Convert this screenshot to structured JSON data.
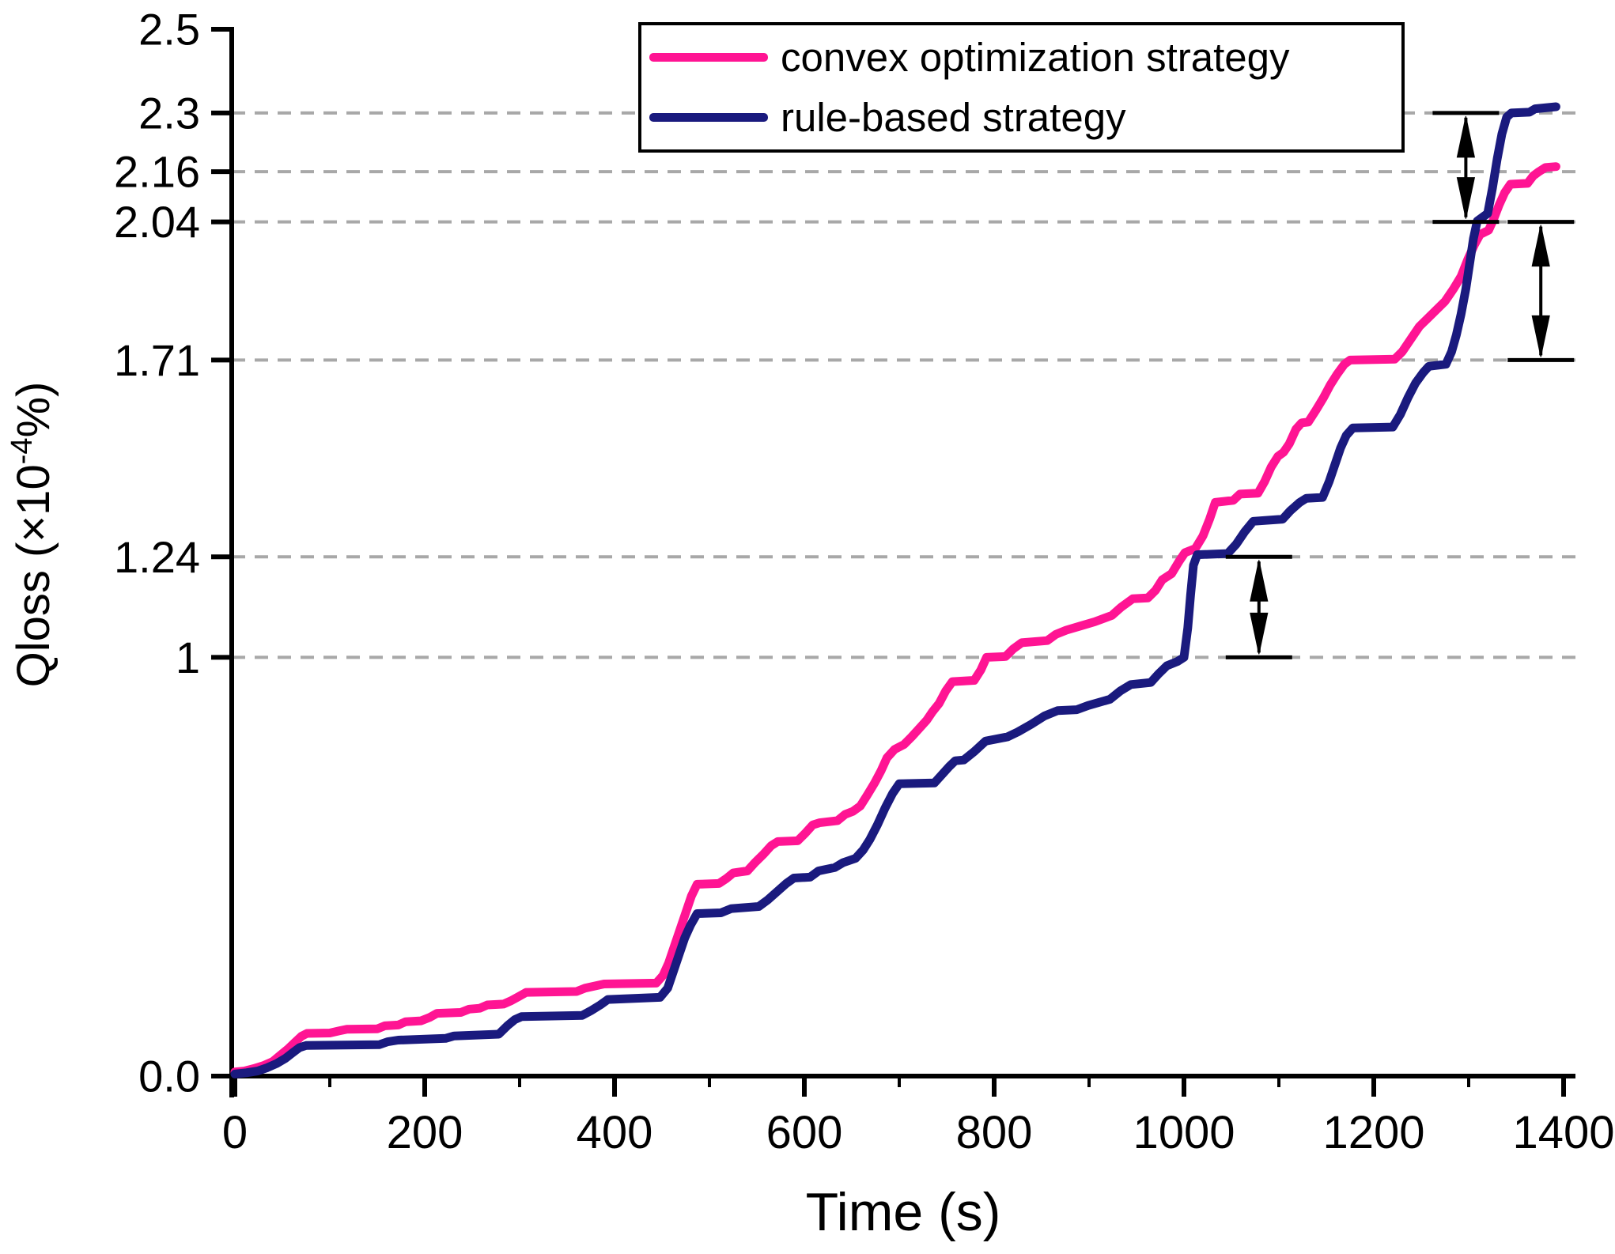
{
  "chart_data": {
    "type": "line",
    "title": "",
    "xlabel": "Time (s)",
    "ylabel": "Qloss (×10⁻⁴%)",
    "ylabel_parts": {
      "pre": "Qloss (×10",
      "sup": "-4",
      "post": "%)"
    },
    "xlim": [
      0,
      1400
    ],
    "ylim": [
      0,
      2.5
    ],
    "grid": "dashed horizontal lines at special y ticks",
    "grid_color": "#a8a8a8",
    "axis_color": "#000000",
    "legend_position": "top-center",
    "x_ticks": [
      {
        "value": 0,
        "label": "0"
      },
      {
        "value": 200,
        "label": "200"
      },
      {
        "value": 400,
        "label": "400"
      },
      {
        "value": 600,
        "label": "600"
      },
      {
        "value": 800,
        "label": "800"
      },
      {
        "value": 1000,
        "label": "1000"
      },
      {
        "value": 1200,
        "label": "1200"
      },
      {
        "value": 1400,
        "label": "1400"
      }
    ],
    "x_minor_ticks": [
      100,
      300,
      500,
      700,
      900,
      1100,
      1300
    ],
    "y_ticks": [
      {
        "value": 0,
        "label": "0.0"
      },
      {
        "value": 1,
        "label": "1"
      },
      {
        "value": 1.24,
        "label": "1.24"
      },
      {
        "value": 1.71,
        "label": "1.71"
      },
      {
        "value": 2.04,
        "label": "2.04"
      },
      {
        "value": 2.16,
        "label": "2.16"
      },
      {
        "value": 2.3,
        "label": "2.3"
      },
      {
        "value": 2.5,
        "label": "2.5"
      }
    ],
    "gridline_values": [
      1,
      1.24,
      1.71,
      2.04,
      2.16,
      2.3
    ],
    "series": [
      {
        "name": "convex optimization strategy",
        "color": "#ff1493",
        "points": [
          [
            0,
            0.01
          ],
          [
            10,
            0.012
          ],
          [
            20,
            0.018
          ],
          [
            30,
            0.025
          ],
          [
            40,
            0.035
          ],
          [
            48,
            0.05
          ],
          [
            56,
            0.065
          ],
          [
            63,
            0.08
          ],
          [
            70,
            0.095
          ],
          [
            76,
            0.102
          ],
          [
            100,
            0.103
          ],
          [
            110,
            0.108
          ],
          [
            118,
            0.112
          ],
          [
            150,
            0.113
          ],
          [
            158,
            0.12
          ],
          [
            172,
            0.122
          ],
          [
            180,
            0.13
          ],
          [
            196,
            0.132
          ],
          [
            205,
            0.14
          ],
          [
            213,
            0.15
          ],
          [
            238,
            0.152
          ],
          [
            247,
            0.16
          ],
          [
            258,
            0.162
          ],
          [
            266,
            0.17
          ],
          [
            283,
            0.172
          ],
          [
            291,
            0.18
          ],
          [
            299,
            0.19
          ],
          [
            307,
            0.2
          ],
          [
            360,
            0.202
          ],
          [
            369,
            0.21
          ],
          [
            379,
            0.215
          ],
          [
            389,
            0.22
          ],
          [
            444,
            0.222
          ],
          [
            451,
            0.24
          ],
          [
            457,
            0.27
          ],
          [
            463,
            0.31
          ],
          [
            469,
            0.35
          ],
          [
            475,
            0.39
          ],
          [
            481,
            0.43
          ],
          [
            487,
            0.458
          ],
          [
            510,
            0.46
          ],
          [
            518,
            0.472
          ],
          [
            525,
            0.485
          ],
          [
            540,
            0.49
          ],
          [
            548,
            0.51
          ],
          [
            557,
            0.53
          ],
          [
            565,
            0.55
          ],
          [
            572,
            0.56
          ],
          [
            593,
            0.562
          ],
          [
            601,
            0.58
          ],
          [
            609,
            0.6
          ],
          [
            616,
            0.605
          ],
          [
            635,
            0.61
          ],
          [
            643,
            0.625
          ],
          [
            651,
            0.632
          ],
          [
            659,
            0.645
          ],
          [
            666,
            0.67
          ],
          [
            674,
            0.7
          ],
          [
            681,
            0.73
          ],
          [
            687,
            0.76
          ],
          [
            695,
            0.78
          ],
          [
            705,
            0.792
          ],
          [
            713,
            0.81
          ],
          [
            721,
            0.83
          ],
          [
            729,
            0.85
          ],
          [
            735,
            0.87
          ],
          [
            742,
            0.89
          ],
          [
            749,
            0.92
          ],
          [
            756,
            0.942
          ],
          [
            779,
            0.945
          ],
          [
            786,
            0.97
          ],
          [
            792,
            1.0
          ],
          [
            812,
            1.002
          ],
          [
            820,
            1.02
          ],
          [
            829,
            1.035
          ],
          [
            856,
            1.04
          ],
          [
            865,
            1.055
          ],
          [
            876,
            1.065
          ],
          [
            891,
            1.075
          ],
          [
            906,
            1.085
          ],
          [
            924,
            1.1
          ],
          [
            934,
            1.12
          ],
          [
            946,
            1.14
          ],
          [
            962,
            1.142
          ],
          [
            970,
            1.16
          ],
          [
            977,
            1.185
          ],
          [
            987,
            1.2
          ],
          [
            995,
            1.23
          ],
          [
            1001,
            1.25
          ],
          [
            1012,
            1.26
          ],
          [
            1020,
            1.29
          ],
          [
            1027,
            1.33
          ],
          [
            1033,
            1.37
          ],
          [
            1052,
            1.375
          ],
          [
            1059,
            1.39
          ],
          [
            1078,
            1.392
          ],
          [
            1085,
            1.42
          ],
          [
            1092,
            1.455
          ],
          [
            1099,
            1.48
          ],
          [
            1105,
            1.49
          ],
          [
            1111,
            1.51
          ],
          [
            1118,
            1.545
          ],
          [
            1124,
            1.56
          ],
          [
            1131,
            1.562
          ],
          [
            1139,
            1.59
          ],
          [
            1147,
            1.62
          ],
          [
            1154,
            1.65
          ],
          [
            1161,
            1.675
          ],
          [
            1169,
            1.7
          ],
          [
            1175,
            1.71
          ],
          [
            1222,
            1.712
          ],
          [
            1230,
            1.73
          ],
          [
            1239,
            1.76
          ],
          [
            1248,
            1.79
          ],
          [
            1257,
            1.81
          ],
          [
            1266,
            1.83
          ],
          [
            1275,
            1.85
          ],
          [
            1284,
            1.88
          ],
          [
            1292,
            1.91
          ],
          [
            1299,
            1.95
          ],
          [
            1306,
            1.985
          ],
          [
            1312,
            2.01
          ],
          [
            1321,
            2.02
          ],
          [
            1326,
            2.045
          ],
          [
            1332,
            2.08
          ],
          [
            1338,
            2.11
          ],
          [
            1344,
            2.13
          ],
          [
            1362,
            2.132
          ],
          [
            1368,
            2.15
          ],
          [
            1374,
            2.16
          ],
          [
            1381,
            2.17
          ],
          [
            1392,
            2.172
          ]
        ]
      },
      {
        "name": "rule-based strategy",
        "color": "#1a1a7e",
        "points": [
          [
            0,
            0.005
          ],
          [
            12,
            0.008
          ],
          [
            24,
            0.012
          ],
          [
            34,
            0.02
          ],
          [
            44,
            0.03
          ],
          [
            53,
            0.042
          ],
          [
            61,
            0.056
          ],
          [
            68,
            0.068
          ],
          [
            75,
            0.073
          ],
          [
            152,
            0.075
          ],
          [
            161,
            0.082
          ],
          [
            172,
            0.086
          ],
          [
            222,
            0.09
          ],
          [
            231,
            0.096
          ],
          [
            278,
            0.1
          ],
          [
            287,
            0.12
          ],
          [
            295,
            0.135
          ],
          [
            302,
            0.142
          ],
          [
            366,
            0.145
          ],
          [
            375,
            0.156
          ],
          [
            385,
            0.17
          ],
          [
            393,
            0.183
          ],
          [
            448,
            0.188
          ],
          [
            456,
            0.21
          ],
          [
            462,
            0.25
          ],
          [
            468,
            0.29
          ],
          [
            474,
            0.33
          ],
          [
            480,
            0.36
          ],
          [
            487,
            0.388
          ],
          [
            512,
            0.39
          ],
          [
            523,
            0.4
          ],
          [
            552,
            0.405
          ],
          [
            561,
            0.42
          ],
          [
            571,
            0.44
          ],
          [
            581,
            0.46
          ],
          [
            589,
            0.473
          ],
          [
            606,
            0.475
          ],
          [
            615,
            0.49
          ],
          [
            632,
            0.498
          ],
          [
            641,
            0.51
          ],
          [
            654,
            0.52
          ],
          [
            662,
            0.54
          ],
          [
            669,
            0.565
          ],
          [
            677,
            0.6
          ],
          [
            685,
            0.64
          ],
          [
            693,
            0.675
          ],
          [
            700,
            0.698
          ],
          [
            737,
            0.7
          ],
          [
            745,
            0.72
          ],
          [
            753,
            0.74
          ],
          [
            759,
            0.753
          ],
          [
            768,
            0.755
          ],
          [
            779,
            0.775
          ],
          [
            791,
            0.8
          ],
          [
            814,
            0.81
          ],
          [
            825,
            0.822
          ],
          [
            839,
            0.84
          ],
          [
            853,
            0.86
          ],
          [
            867,
            0.873
          ],
          [
            887,
            0.875
          ],
          [
            899,
            0.885
          ],
          [
            922,
            0.9
          ],
          [
            933,
            0.92
          ],
          [
            944,
            0.935
          ],
          [
            965,
            0.94
          ],
          [
            973,
            0.96
          ],
          [
            982,
            0.98
          ],
          [
            993,
            0.99
          ],
          [
            1000,
            1.0
          ],
          [
            1004,
            1.07
          ],
          [
            1007,
            1.15
          ],
          [
            1010,
            1.22
          ],
          [
            1014,
            1.245
          ],
          [
            1046,
            1.248
          ],
          [
            1055,
            1.27
          ],
          [
            1064,
            1.3
          ],
          [
            1073,
            1.325
          ],
          [
            1104,
            1.33
          ],
          [
            1112,
            1.35
          ],
          [
            1122,
            1.37
          ],
          [
            1129,
            1.38
          ],
          [
            1146,
            1.382
          ],
          [
            1153,
            1.42
          ],
          [
            1159,
            1.46
          ],
          [
            1165,
            1.5
          ],
          [
            1171,
            1.53
          ],
          [
            1178,
            1.548
          ],
          [
            1220,
            1.55
          ],
          [
            1228,
            1.58
          ],
          [
            1236,
            1.62
          ],
          [
            1244,
            1.655
          ],
          [
            1252,
            1.68
          ],
          [
            1258,
            1.695
          ],
          [
            1276,
            1.7
          ],
          [
            1282,
            1.73
          ],
          [
            1287,
            1.77
          ],
          [
            1292,
            1.82
          ],
          [
            1297,
            1.88
          ],
          [
            1301,
            1.94
          ],
          [
            1305,
            2.0
          ],
          [
            1309,
            2.042
          ],
          [
            1320,
            2.06
          ],
          [
            1325,
            2.12
          ],
          [
            1330,
            2.19
          ],
          [
            1335,
            2.25
          ],
          [
            1340,
            2.29
          ],
          [
            1345,
            2.3
          ],
          [
            1364,
            2.302
          ],
          [
            1370,
            2.31
          ],
          [
            1392,
            2.315
          ]
        ]
      }
    ],
    "annotations": [
      {
        "type": "range-arrow",
        "x": 1297,
        "from": 2.04,
        "to": 2.3,
        "meaning": "gap between 2.04 and 2.3 gridlines where rule-based curve jumps"
      },
      {
        "type": "range-arrow",
        "x": 1376,
        "from": 1.71,
        "to": 2.04,
        "meaning": "gap between 1.71 and 2.04 gridlines at end of curves"
      },
      {
        "type": "range-arrow",
        "x": 1079,
        "from": 1.0,
        "to": 1.24,
        "meaning": "gap between 1 and 1.24 gridlines where rule-based curve jumps"
      }
    ]
  },
  "legend": {
    "entries": [
      {
        "label": "convex optimization strategy",
        "color": "#ff1493"
      },
      {
        "label": "rule-based strategy",
        "color": "#1a1a7e"
      }
    ]
  }
}
